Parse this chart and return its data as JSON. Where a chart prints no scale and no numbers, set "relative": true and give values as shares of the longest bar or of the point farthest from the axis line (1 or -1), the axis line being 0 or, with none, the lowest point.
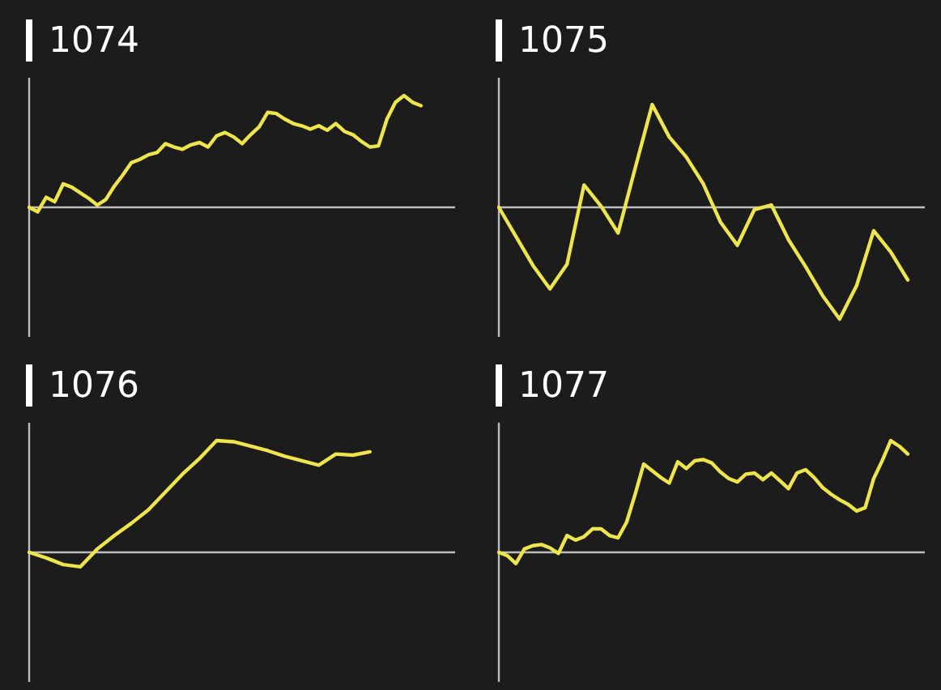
{
  "chart_data": [
    {
      "type": "line",
      "title": "1074",
      "relative": true,
      "marker": "none",
      "line_style": "solid",
      "categories": [
        null,
        null,
        null,
        null,
        null,
        null,
        null,
        null,
        null,
        null,
        null,
        null,
        null,
        null,
        null,
        null,
        null,
        null,
        null,
        null,
        null,
        null,
        null,
        null,
        null,
        null,
        null,
        null,
        null,
        null,
        null,
        null,
        null,
        null,
        null,
        null,
        null,
        null,
        null,
        null,
        null,
        null,
        null,
        null,
        null,
        null,
        null,
        null,
        null,
        null,
        null
      ],
      "series": [
        {
          "color": "#eee44c",
          "values": [
            0,
            -0.04,
            0.09,
            0.05,
            0.21,
            0.18,
            0.13,
            0.08,
            0.02,
            0.07,
            0.19,
            0.29,
            0.4,
            0.43,
            0.47,
            0.49,
            0.57,
            0.54,
            0.52,
            0.56,
            0.58,
            0.54,
            0.64,
            0.67,
            0.63,
            0.57,
            0.65,
            0.72,
            0.85,
            0.84,
            0.79,
            0.75,
            0.73,
            0.7,
            0.73,
            0.69,
            0.75,
            0.68,
            0.65,
            0.59,
            0.54,
            0.55,
            0.79,
            0.94,
            1,
            0.94,
            0.91,
            null,
            null,
            null,
            null
          ]
        }
      ]
    },
    {
      "type": "line",
      "title": "1075",
      "relative": true,
      "marker": "none",
      "line_style": "solid",
      "categories": [
        null,
        null,
        null,
        null,
        null,
        null,
        null,
        null,
        null,
        null,
        null,
        null,
        null,
        null,
        null,
        null,
        null,
        null,
        null,
        null,
        null,
        null,
        null,
        null,
        null,
        null
      ],
      "series": [
        {
          "color": "#eee44c",
          "values": [
            0,
            -0.26,
            -0.52,
            -0.73,
            -0.51,
            0.2,
            0.01,
            -0.23,
            0.35,
            0.92,
            0.63,
            0.45,
            0.21,
            -0.13,
            -0.34,
            -0.02,
            0.02,
            -0.29,
            -0.53,
            -0.79,
            -1,
            -0.7,
            -0.21,
            -0.4,
            -0.65,
            null
          ]
        }
      ]
    },
    {
      "type": "line",
      "title": "1076",
      "relative": true,
      "marker": "none",
      "line_style": "solid",
      "categories": [
        null,
        null,
        null,
        null,
        null,
        null,
        null,
        null,
        null,
        null,
        null,
        null,
        null,
        null,
        null,
        null,
        null,
        null,
        null,
        null,
        null,
        null,
        null,
        null,
        null,
        null
      ],
      "series": [
        {
          "color": "#eee44c",
          "values": [
            0,
            -0.05,
            -0.11,
            -0.13,
            0.03,
            0.15,
            0.26,
            0.38,
            0.54,
            0.7,
            0.84,
            1,
            0.99,
            0.95,
            0.91,
            0.86,
            0.82,
            0.78,
            0.88,
            0.87,
            0.9,
            null,
            null,
            null,
            null,
            null
          ]
        }
      ]
    },
    {
      "type": "line",
      "title": "1077",
      "relative": true,
      "marker": "none",
      "line_style": "solid",
      "categories": [
        null,
        null,
        null,
        null,
        null,
        null,
        null,
        null,
        null,
        null,
        null,
        null,
        null,
        null,
        null,
        null,
        null,
        null,
        null,
        null,
        null,
        null,
        null,
        null,
        null,
        null,
        null,
        null,
        null,
        null,
        null,
        null,
        null,
        null,
        null,
        null,
        null,
        null,
        null,
        null,
        null,
        null,
        null,
        null,
        null,
        null,
        null,
        null,
        null,
        null,
        null
      ],
      "series": [
        {
          "color": "#eee44c",
          "values": [
            0,
            -0.03,
            -0.1,
            0.03,
            0.06,
            0.07,
            0.04,
            -0.01,
            0.15,
            0.11,
            0.14,
            0.21,
            0.21,
            0.15,
            0.13,
            0.27,
            0.52,
            0.79,
            0.73,
            0.67,
            0.62,
            0.81,
            0.75,
            0.82,
            0.83,
            0.8,
            0.72,
            0.66,
            0.63,
            0.7,
            0.71,
            0.65,
            0.71,
            0.64,
            0.57,
            0.71,
            0.74,
            0.67,
            0.58,
            0.52,
            0.47,
            0.43,
            0.37,
            0.4,
            0.66,
            0.82,
            1,
            0.95,
            0.88,
            null,
            null
          ]
        }
      ]
    }
  ]
}
